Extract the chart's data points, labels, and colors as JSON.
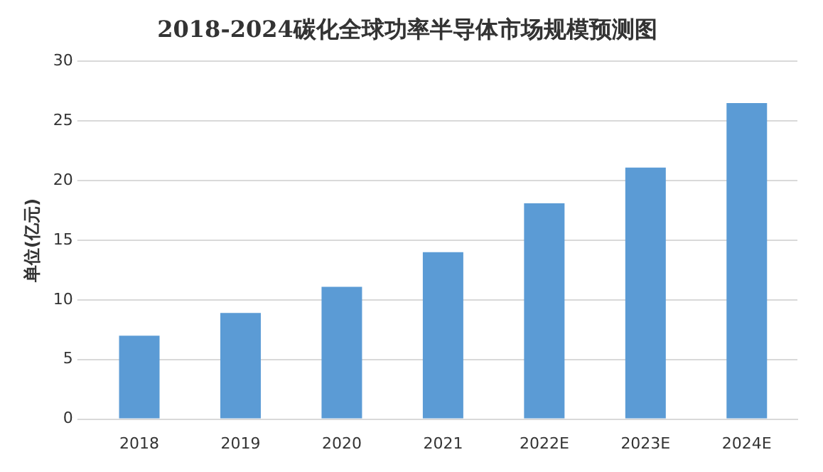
{
  "chart_data": {
    "type": "bar",
    "title": "2018-2024碳化全球功率半导体市场规模预测图",
    "ylabel": "单位(亿元)",
    "categories": [
      "2018",
      "2019",
      "2020",
      "2021",
      "2022E",
      "2023E",
      "2024E"
    ],
    "values": [
      7,
      8.9,
      11.1,
      14,
      18.1,
      21.1,
      26.5
    ],
    "color": "#5b9bd5",
    "ylim": [
      0,
      30
    ],
    "yticks": [
      0,
      5,
      10,
      15,
      20,
      25,
      30
    ],
    "grid": "y"
  }
}
